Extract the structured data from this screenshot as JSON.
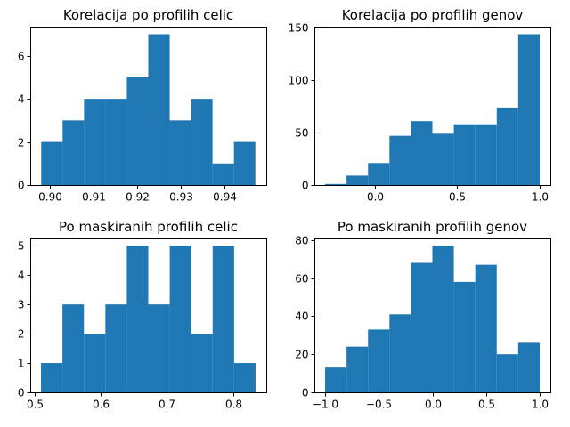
{
  "chart_data": [
    {
      "type": "bar",
      "title": "Korelacija po profilih celic",
      "xlabel": "",
      "ylabel": "",
      "bin_edges": [
        0.898,
        0.9029,
        0.9078,
        0.9127,
        0.9176,
        0.9225,
        0.9274,
        0.9323,
        0.9372,
        0.9421,
        0.947
      ],
      "values": [
        2,
        3,
        4,
        4,
        5,
        7,
        3,
        4,
        1,
        2
      ],
      "xlim": [
        0.8955,
        0.9495
      ],
      "ylim": [
        0,
        7.35
      ],
      "xticks": [
        0.9,
        0.91,
        0.92,
        0.93,
        0.94
      ],
      "xtick_labels": [
        "0.90",
        "0.91",
        "0.92",
        "0.93",
        "0.94"
      ],
      "yticks": [
        0,
        2,
        4,
        6
      ],
      "ytick_labels": [
        "0",
        "2",
        "4",
        "6"
      ],
      "color": "#1f77b4"
    },
    {
      "type": "bar",
      "title": "Korelacija po profilih genov",
      "xlabel": "",
      "ylabel": "",
      "bin_edges": [
        -0.3,
        -0.17,
        -0.04,
        0.09,
        0.22,
        0.35,
        0.48,
        0.61,
        0.74,
        0.87,
        1.0
      ],
      "values": [
        1,
        9,
        21,
        47,
        61,
        49,
        58,
        58,
        74,
        144
      ],
      "xlim": [
        -0.365,
        1.065
      ],
      "ylim": [
        0,
        151.2
      ],
      "xticks": [
        0.0,
        0.5,
        1.0
      ],
      "xtick_labels": [
        "0.0",
        "0.5",
        "1.0"
      ],
      "yticks": [
        0,
        50,
        100,
        150
      ],
      "ytick_labels": [
        "0",
        "50",
        "100",
        "150"
      ],
      "color": "#1f77b4"
    },
    {
      "type": "bar",
      "title": "Po maskiranih profilih celic",
      "xlabel": "",
      "ylabel": "",
      "bin_edges": [
        0.51,
        0.5424,
        0.5748,
        0.6072,
        0.6396,
        0.672,
        0.7044,
        0.7368,
        0.7692,
        0.8016,
        0.834
      ],
      "values": [
        1,
        3,
        2,
        3,
        5,
        3,
        5,
        2,
        5,
        1
      ],
      "xlim": [
        0.4938,
        0.8502
      ],
      "ylim": [
        0,
        5.25
      ],
      "xticks": [
        0.5,
        0.6,
        0.7,
        0.8
      ],
      "xtick_labels": [
        "0.5",
        "0.6",
        "0.7",
        "0.8"
      ],
      "yticks": [
        0,
        1,
        2,
        3,
        4,
        5
      ],
      "ytick_labels": [
        "0",
        "1",
        "2",
        "3",
        "4",
        "5"
      ],
      "color": "#1f77b4"
    },
    {
      "type": "bar",
      "title": "Po maskiranih profilih genov",
      "xlabel": "",
      "ylabel": "",
      "bin_edges": [
        -1.0,
        -0.8,
        -0.6,
        -0.4,
        -0.2,
        0.0,
        0.2,
        0.4,
        0.6,
        0.8,
        1.0
      ],
      "values": [
        13,
        24,
        33,
        41,
        68,
        77,
        58,
        67,
        20,
        26
      ],
      "xlim": [
        -1.1,
        1.1
      ],
      "ylim": [
        0,
        80.85
      ],
      "xticks": [
        -1.0,
        -0.5,
        0.0,
        0.5,
        1.0
      ],
      "xtick_labels": [
        "−1.0",
        "−0.5",
        "0.0",
        "0.5",
        "1.0"
      ],
      "yticks": [
        0,
        20,
        40,
        60,
        80
      ],
      "ytick_labels": [
        "0",
        "20",
        "40",
        "60",
        "80"
      ],
      "color": "#1f77b4"
    }
  ]
}
